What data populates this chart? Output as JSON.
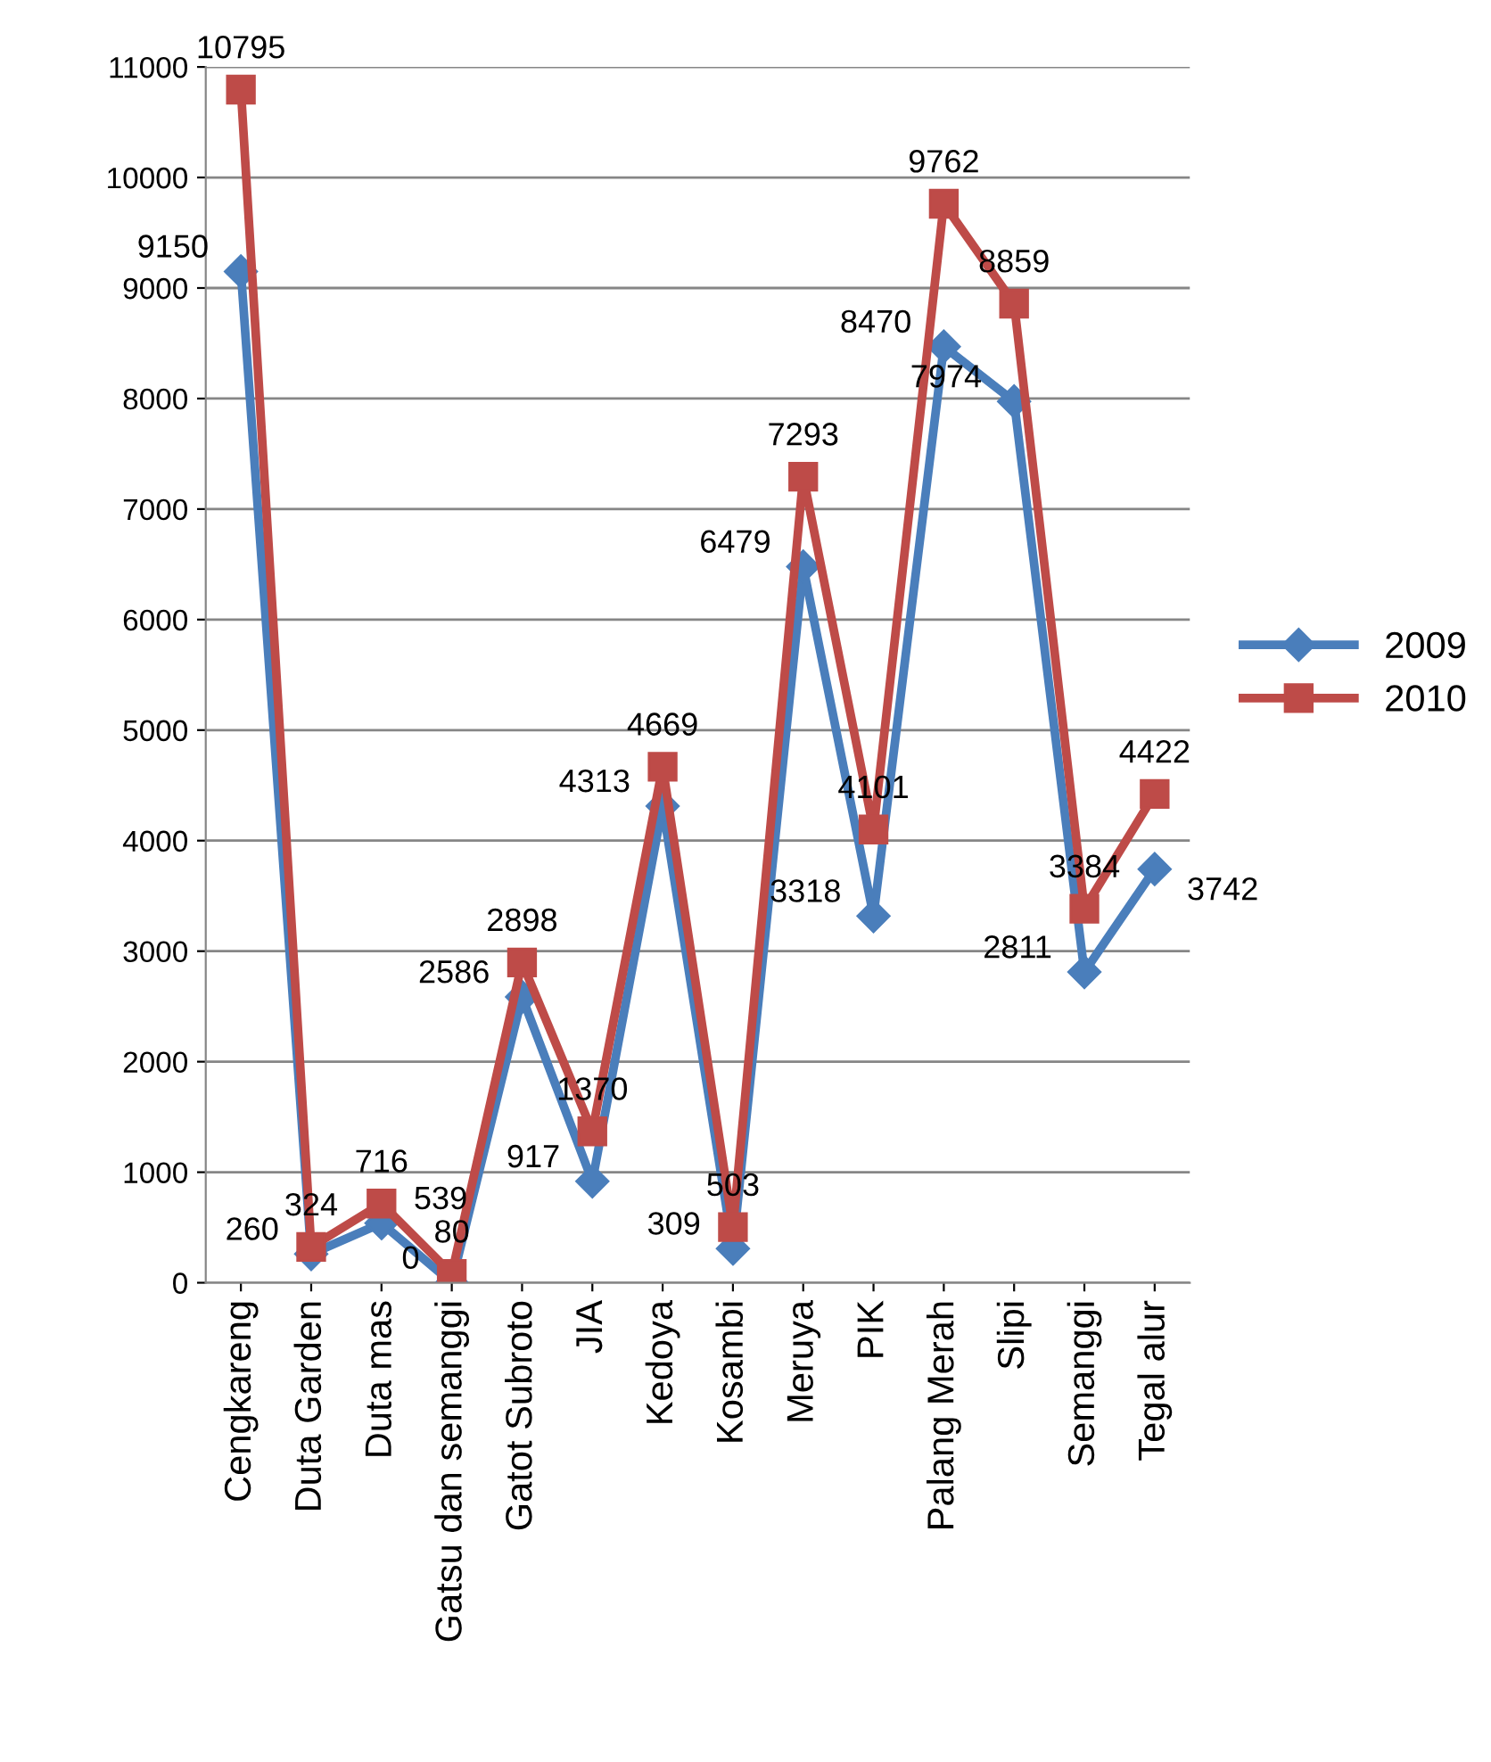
{
  "chart_data": {
    "type": "line",
    "categories": [
      "Cengkareng",
      "Duta Garden",
      "Duta mas",
      "Gatsu dan semanggi",
      "Gatot Subroto",
      "JIA",
      "Kedoya",
      "Kosambi",
      "Meruya",
      "PIK",
      "Palang Merah",
      "Slipi",
      "Semanggi",
      "Tegal alur"
    ],
    "series": [
      {
        "name": "2009",
        "color": "#4a7ebb",
        "marker": "diamond",
        "values": [
          9150,
          260,
          539,
          0,
          2586,
          917,
          4313,
          309,
          6479,
          3318,
          8470,
          7974,
          2811,
          3742
        ]
      },
      {
        "name": "2010",
        "color": "#be4b48",
        "marker": "square",
        "values": [
          10795,
          324,
          716,
          80,
          2898,
          1370,
          4669,
          503,
          7293,
          4101,
          9762,
          8859,
          3384,
          4422
        ]
      }
    ],
    "ylim": [
      0,
      11000
    ],
    "yticks": [
      0,
      1000,
      2000,
      3000,
      4000,
      5000,
      6000,
      7000,
      8000,
      9000,
      10000,
      11000
    ],
    "grid": "y",
    "legend": "right",
    "data_labels": true
  }
}
